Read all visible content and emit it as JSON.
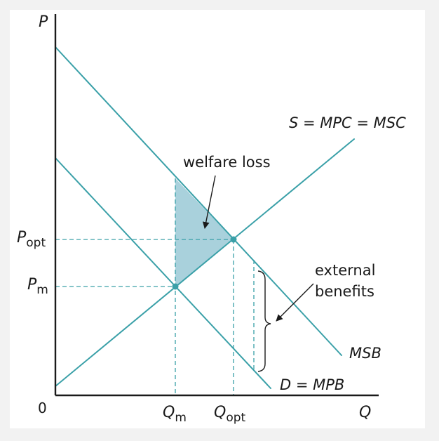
{
  "diagram": {
    "axes": {
      "y_label": "P",
      "x_label": "Q",
      "origin_label": "0"
    },
    "curves": {
      "supply_label": "S = MPC = MSC",
      "msb_label": "MSB",
      "demand_label": "D = MPB"
    },
    "price_labels": {
      "p_opt_main": "P",
      "p_opt_sub": "opt",
      "p_m_main": "P",
      "p_m_sub": "m"
    },
    "quantity_labels": {
      "q_m_main": "Q",
      "q_m_sub": "m",
      "q_opt_main": "Q",
      "q_opt_sub": "opt"
    },
    "annotations": {
      "welfare_loss": "welfare loss",
      "external_line1": "external",
      "external_line2": "benefits"
    },
    "colors": {
      "curve": "#3aa0a8",
      "axis": "#1a1a1a",
      "shade": "#a9d1dc",
      "text": "#1a1a1a"
    }
  }
}
